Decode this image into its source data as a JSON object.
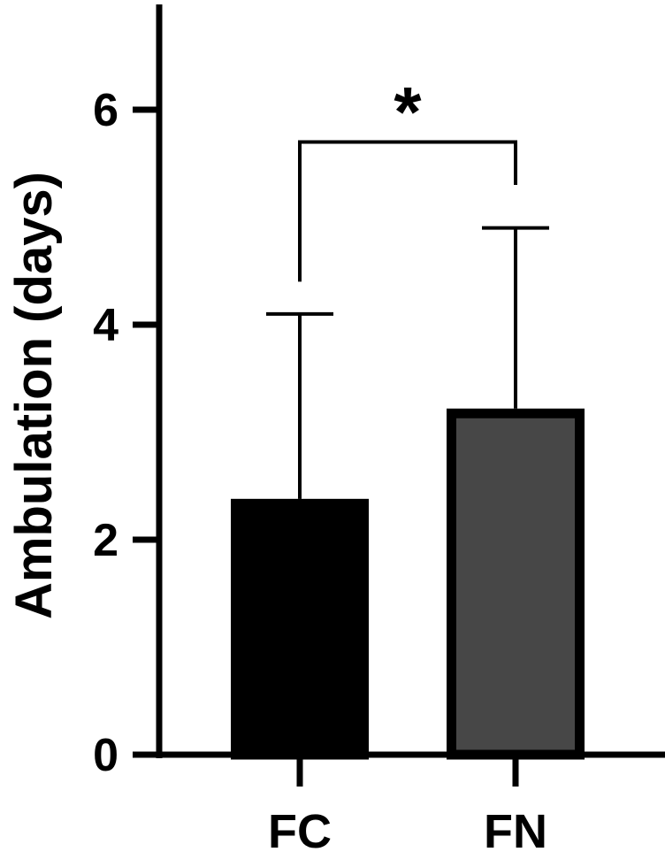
{
  "chart_data": {
    "type": "bar",
    "title": "",
    "xlabel": "",
    "ylabel": "Ambulation (days)",
    "categories": [
      "FC",
      "FN"
    ],
    "values": [
      2.38,
      3.22
    ],
    "error_upper": [
      4.1,
      4.9
    ],
    "colors": [
      "#000000",
      "#474747"
    ],
    "ylim": [
      0,
      7
    ],
    "yticks": [
      0,
      2,
      4,
      6
    ],
    "ytick_labels": [
      "0",
      "2",
      "4",
      "6"
    ],
    "grid": false,
    "legend": "none",
    "annotation": {
      "text": "*",
      "between": [
        "FC",
        "FN"
      ],
      "left_drop_to": 4.4,
      "right_drop_to": 5.3,
      "bracket_at": 5.7
    }
  }
}
